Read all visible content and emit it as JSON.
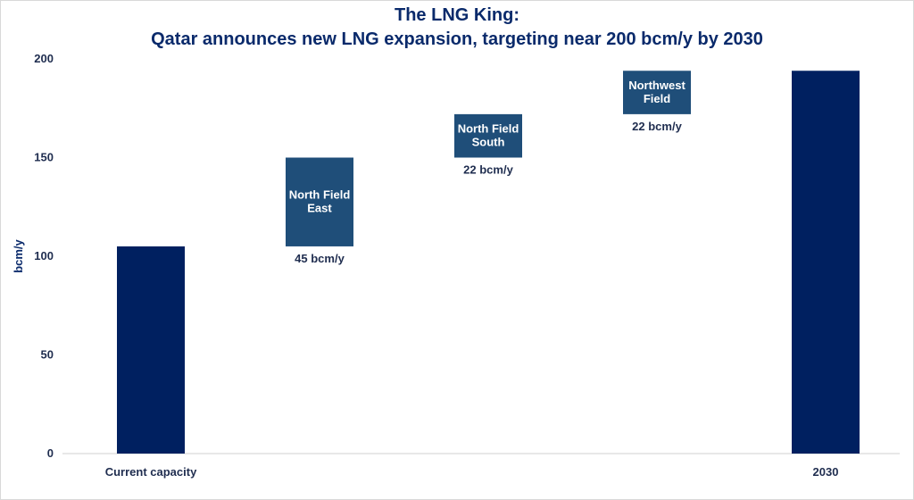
{
  "chart_data": {
    "type": "bar",
    "subtype": "waterfall",
    "title_line1": "The LNG King:",
    "title_line2": "Qatar announces new LNG expansion, targeting near 200 bcm/y by 2030",
    "ylabel": "bcm/y",
    "ylim": [
      0,
      200
    ],
    "yticks": [
      0,
      50,
      100,
      150,
      200
    ],
    "grid": false,
    "legend": "none",
    "categories": [
      "Current capacity",
      "",
      "",
      "",
      "2030"
    ],
    "bars": [
      {
        "category": "Current capacity",
        "kind": "total",
        "base": 0,
        "value": 105,
        "inner_label": "",
        "value_label": ""
      },
      {
        "category": "",
        "kind": "increment",
        "base": 105,
        "value": 45,
        "inner_label": "North Field East",
        "value_label": "45 bcm/y"
      },
      {
        "category": "",
        "kind": "increment",
        "base": 150,
        "value": 22,
        "inner_label": "North Field South",
        "value_label": "22 bcm/y"
      },
      {
        "category": "",
        "kind": "increment",
        "base": 172,
        "value": 22,
        "inner_label": "Northwest Field",
        "value_label": "22 bcm/y"
      },
      {
        "category": "2030",
        "kind": "total",
        "base": 0,
        "value": 194,
        "inner_label": "",
        "value_label": ""
      }
    ],
    "colors": {
      "total": "#002060",
      "increment": "#1f4e79",
      "text": "#1f2d4f",
      "title": "#0a2a6b"
    }
  }
}
